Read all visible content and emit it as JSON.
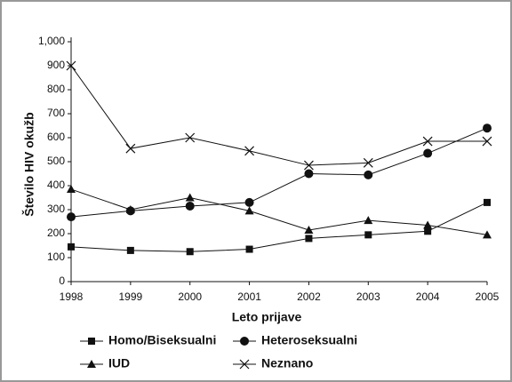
{
  "chart_data": {
    "type": "line",
    "x_label": "Leto prijave",
    "y_label": "Število HIV okužb",
    "categories": [
      "1998",
      "1999",
      "2000",
      "2001",
      "2002",
      "2003",
      "2004",
      "2005"
    ],
    "series": [
      {
        "name": "Homo/Biseksualni",
        "color": "#111111",
        "marker": "square",
        "values": [
          145,
          130,
          125,
          135,
          180,
          195,
          210,
          330
        ]
      },
      {
        "name": "Heteroseksualni",
        "color": "#111111",
        "marker": "circle",
        "values": [
          270,
          295,
          315,
          330,
          450,
          445,
          535,
          640
        ]
      },
      {
        "name": "IUD",
        "color": "#111111",
        "marker": "triangle",
        "values": [
          385,
          300,
          350,
          295,
          215,
          255,
          235,
          195
        ]
      },
      {
        "name": "Neznano",
        "color": "#111111",
        "marker": "x",
        "values": [
          900,
          555,
          600,
          545,
          485,
          495,
          585,
          585
        ]
      }
    ],
    "ylim": [
      0,
      1000
    ],
    "yticks": [
      0,
      100,
      200,
      300,
      400,
      500,
      600,
      700,
      800,
      900,
      {
        "value": 1000,
        "label": "1,000"
      }
    ],
    "grid": false
  }
}
